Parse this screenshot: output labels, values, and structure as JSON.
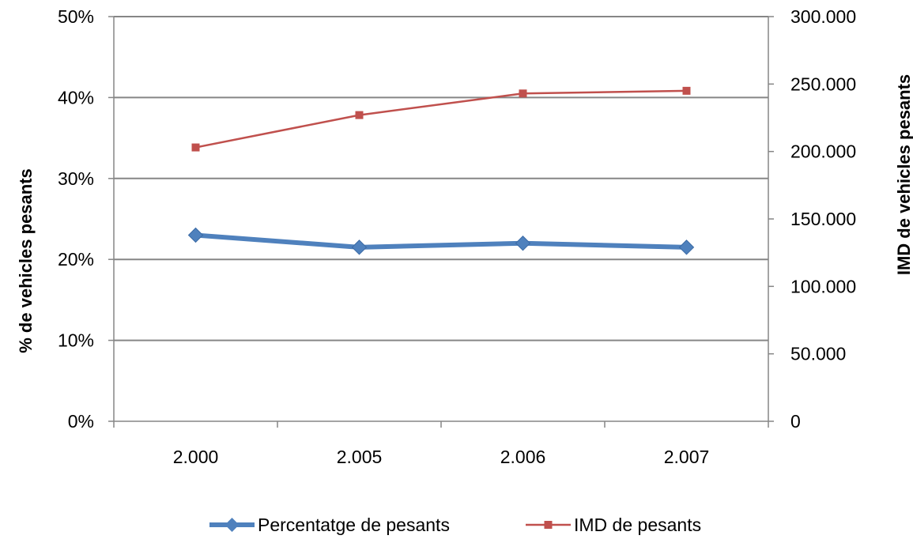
{
  "chart_data": {
    "type": "line",
    "title": "",
    "categories": [
      "2.000",
      "2.005",
      "2.006",
      "2.007"
    ],
    "xlabel": "",
    "ylabel_left": "% de vehicles pesants",
    "ylabel_right": "IMD de vehicles pesants",
    "left_axis": {
      "ylim": [
        0,
        50
      ],
      "ticks": [
        0,
        10,
        20,
        30,
        40,
        50
      ],
      "tick_labels": [
        "0%",
        "10%",
        "20%",
        "30%",
        "40%",
        "50%"
      ]
    },
    "right_axis": {
      "ylim": [
        0,
        300000
      ],
      "ticks": [
        0,
        50000,
        100000,
        150000,
        200000,
        250000,
        300000
      ],
      "tick_labels": [
        "0",
        "50.000",
        "100.000",
        "150.000",
        "200.000",
        "250.000",
        "300.000"
      ]
    },
    "grid": true,
    "legend_position": "bottom",
    "series": [
      {
        "name": "Percentatge de pesants",
        "axis": "left",
        "unit": "%",
        "values": [
          23.0,
          21.5,
          22.0,
          21.5
        ],
        "color": "#4f81bd",
        "marker": "diamond"
      },
      {
        "name": "IMD de pesants",
        "axis": "right",
        "values": [
          203000,
          227000,
          243000,
          245000
        ],
        "color": "#c0504d",
        "marker": "square"
      }
    ]
  }
}
